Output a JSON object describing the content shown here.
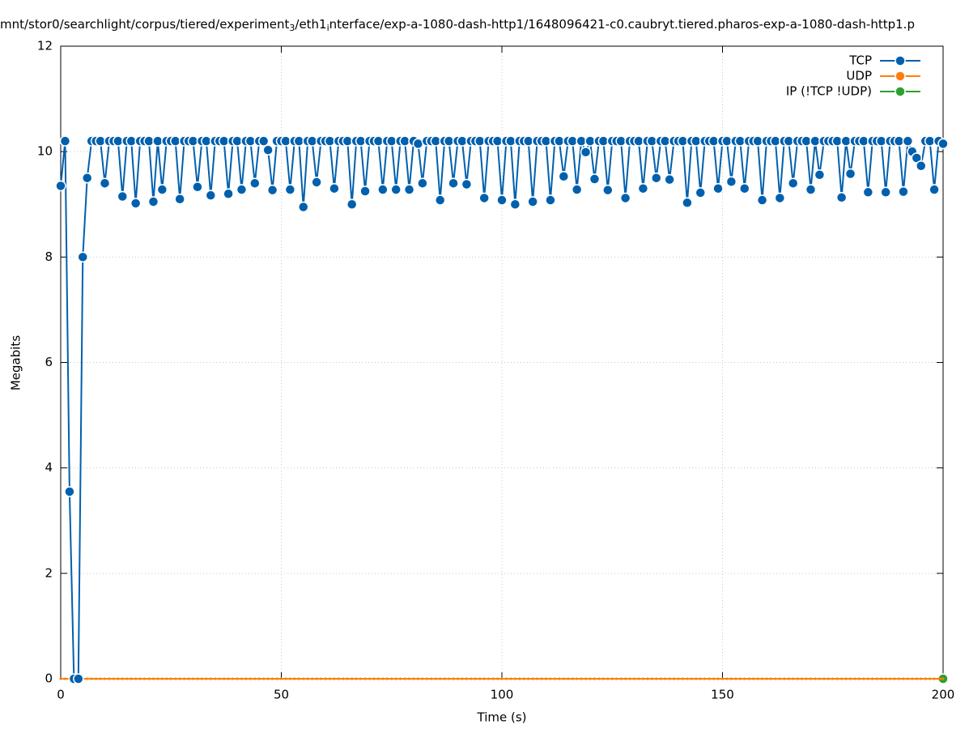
{
  "chart_data": {
    "type": "line",
    "title_parts": [
      "mnt/stor0/searchlight/corpus/tiered/experiment",
      "3",
      "/eth1",
      "i",
      "nterface/exp-a-1080-dash-http1/1648096421-c0.caubryt.tiered.pharos-exp-a-1080-dash-http1.p"
    ],
    "x_label": "Time (s)",
    "y_label": "Megabits",
    "xlim": [
      0,
      200
    ],
    "xticks": [
      0,
      50,
      100,
      150,
      200
    ],
    "ylim": [
      0,
      12
    ],
    "yticks": [
      0,
      2,
      4,
      6,
      8,
      10,
      12
    ],
    "grid": true,
    "legend": "top-right",
    "x": [
      0,
      1,
      2,
      3,
      4,
      5,
      6,
      7,
      8,
      9,
      10,
      11,
      12,
      13,
      14,
      15,
      16,
      17,
      18,
      19,
      20,
      21,
      22,
      23,
      24,
      25,
      26,
      27,
      28,
      29,
      30,
      31,
      32,
      33,
      34,
      35,
      36,
      37,
      38,
      39,
      40,
      41,
      42,
      43,
      44,
      45,
      46,
      47,
      48,
      49,
      50,
      51,
      52,
      53,
      54,
      55,
      56,
      57,
      58,
      59,
      60,
      61,
      62,
      63,
      64,
      65,
      66,
      67,
      68,
      69,
      70,
      71,
      72,
      73,
      74,
      75,
      76,
      77,
      78,
      79,
      80,
      81,
      82,
      83,
      84,
      85,
      86,
      87,
      88,
      89,
      90,
      91,
      92,
      93,
      94,
      95,
      96,
      97,
      98,
      99,
      100,
      101,
      102,
      103,
      104,
      105,
      106,
      107,
      108,
      109,
      110,
      111,
      112,
      113,
      114,
      115,
      116,
      117,
      118,
      119,
      120,
      121,
      122,
      123,
      124,
      125,
      126,
      127,
      128,
      129,
      130,
      131,
      132,
      133,
      134,
      135,
      136,
      137,
      138,
      139,
      140,
      141,
      142,
      143,
      144,
      145,
      146,
      147,
      148,
      149,
      150,
      151,
      152,
      153,
      154,
      155,
      156,
      157,
      158,
      159,
      160,
      161,
      162,
      163,
      164,
      165,
      166,
      167,
      168,
      169,
      170,
      171,
      172,
      173,
      174,
      175,
      176,
      177,
      178,
      179,
      180,
      181,
      182,
      183,
      184,
      185,
      186,
      187,
      188,
      189,
      190,
      191,
      192,
      193,
      194,
      195,
      196,
      197,
      198,
      199,
      200
    ],
    "series": [
      {
        "name": "TCP",
        "color": "#0060ad",
        "values": [
          9.35,
          10.2,
          3.55,
          0,
          0,
          8.0,
          9.5,
          10.2,
          10.2,
          10.2,
          9.4,
          10.2,
          10.2,
          10.2,
          9.15,
          10.2,
          10.2,
          9.02,
          10.2,
          10.2,
          10.2,
          9.05,
          10.2,
          9.28,
          10.2,
          10.2,
          10.2,
          9.1,
          10.2,
          10.2,
          10.2,
          9.33,
          10.2,
          10.2,
          9.17,
          10.2,
          10.2,
          10.2,
          9.2,
          10.2,
          10.2,
          9.28,
          10.2,
          10.2,
          9.4,
          10.2,
          10.2,
          10.03,
          9.27,
          10.2,
          10.2,
          10.2,
          9.28,
          10.2,
          10.2,
          8.95,
          10.2,
          10.2,
          9.42,
          10.2,
          10.2,
          10.2,
          9.3,
          10.2,
          10.2,
          10.2,
          9.0,
          10.2,
          10.2,
          9.25,
          10.2,
          10.2,
          10.2,
          9.28,
          10.2,
          10.2,
          9.28,
          10.2,
          10.2,
          9.28,
          10.2,
          10.15,
          9.4,
          10.2,
          10.2,
          10.2,
          9.08,
          10.2,
          10.2,
          9.4,
          10.2,
          10.2,
          9.38,
          10.2,
          10.2,
          10.2,
          9.12,
          10.2,
          10.2,
          10.2,
          9.08,
          10.2,
          10.2,
          9.0,
          10.2,
          10.2,
          10.2,
          9.05,
          10.2,
          10.2,
          10.2,
          9.08,
          10.2,
          10.2,
          9.53,
          10.2,
          10.2,
          9.28,
          10.2,
          9.99,
          10.2,
          9.48,
          10.2,
          10.2,
          9.27,
          10.2,
          10.2,
          10.2,
          9.12,
          10.2,
          10.2,
          10.2,
          9.3,
          10.2,
          10.2,
          9.5,
          10.2,
          10.2,
          9.47,
          10.2,
          10.2,
          10.2,
          9.03,
          10.2,
          10.2,
          9.22,
          10.2,
          10.2,
          10.2,
          9.3,
          10.2,
          10.2,
          9.43,
          10.2,
          10.2,
          9.3,
          10.2,
          10.2,
          10.2,
          9.08,
          10.2,
          10.2,
          10.2,
          9.12,
          10.2,
          10.2,
          9.4,
          10.2,
          10.2,
          10.2,
          9.28,
          10.2,
          9.56,
          10.2,
          10.2,
          10.2,
          10.2,
          9.13,
          10.2,
          9.58,
          10.2,
          10.2,
          10.2,
          9.23,
          10.2,
          10.2,
          10.2,
          9.23,
          10.2,
          10.2,
          10.2,
          9.24,
          10.2,
          10.0,
          9.88,
          9.73,
          10.2,
          10.2,
          9.28,
          10.2,
          10.15
        ]
      },
      {
        "name": "UDP",
        "color": "#ff7f0e",
        "values": [
          0,
          0,
          0,
          0,
          0,
          0,
          0,
          0,
          0,
          0,
          0,
          0,
          0,
          0,
          0,
          0,
          0,
          0,
          0,
          0,
          0,
          0,
          0,
          0,
          0,
          0,
          0,
          0,
          0,
          0,
          0,
          0,
          0,
          0,
          0,
          0,
          0,
          0,
          0,
          0,
          0,
          0,
          0,
          0,
          0,
          0,
          0,
          0,
          0,
          0,
          0,
          0,
          0,
          0,
          0,
          0,
          0,
          0,
          0,
          0,
          0,
          0,
          0,
          0,
          0,
          0,
          0,
          0,
          0,
          0,
          0,
          0,
          0,
          0,
          0,
          0,
          0,
          0,
          0,
          0,
          0,
          0,
          0,
          0,
          0,
          0,
          0,
          0,
          0,
          0,
          0,
          0,
          0,
          0,
          0,
          0,
          0,
          0,
          0,
          0,
          0,
          0,
          0,
          0,
          0,
          0,
          0,
          0,
          0,
          0,
          0,
          0,
          0,
          0,
          0,
          0,
          0,
          0,
          0,
          0,
          0,
          0,
          0,
          0,
          0,
          0,
          0,
          0,
          0,
          0,
          0,
          0,
          0,
          0,
          0,
          0,
          0,
          0,
          0,
          0,
          0,
          0,
          0,
          0,
          0,
          0,
          0,
          0,
          0,
          0,
          0,
          0,
          0,
          0,
          0,
          0,
          0,
          0,
          0,
          0,
          0,
          0,
          0,
          0,
          0,
          0,
          0,
          0,
          0,
          0,
          0,
          0,
          0,
          0,
          0,
          0,
          0,
          0,
          0,
          0,
          0,
          0,
          0,
          0,
          0,
          0,
          0,
          0,
          0,
          0,
          0,
          0,
          0,
          0,
          0,
          0,
          0,
          0,
          0,
          0,
          0
        ]
      },
      {
        "name": "IP (!TCP  !UDP)",
        "color": "#2ca02c",
        "values": [
          0,
          0,
          0,
          0,
          0,
          0,
          0,
          0,
          0,
          0,
          0,
          0,
          0,
          0,
          0,
          0,
          0,
          0,
          0,
          0,
          0,
          0,
          0,
          0,
          0,
          0,
          0,
          0,
          0,
          0,
          0,
          0,
          0,
          0,
          0,
          0,
          0,
          0,
          0,
          0,
          0,
          0,
          0,
          0,
          0,
          0,
          0,
          0,
          0,
          0,
          0,
          0,
          0,
          0,
          0,
          0,
          0,
          0,
          0,
          0,
          0,
          0,
          0,
          0,
          0,
          0,
          0,
          0,
          0,
          0,
          0,
          0,
          0,
          0,
          0,
          0,
          0,
          0,
          0,
          0,
          0,
          0,
          0,
          0,
          0,
          0,
          0,
          0,
          0,
          0,
          0,
          0,
          0,
          0,
          0,
          0,
          0,
          0,
          0,
          0,
          0,
          0,
          0,
          0,
          0,
          0,
          0,
          0,
          0,
          0,
          0,
          0,
          0,
          0,
          0,
          0,
          0,
          0,
          0,
          0,
          0,
          0,
          0,
          0,
          0,
          0,
          0,
          0,
          0,
          0,
          0,
          0,
          0,
          0,
          0,
          0,
          0,
          0,
          0,
          0,
          0,
          0,
          0,
          0,
          0,
          0,
          0,
          0,
          0,
          0,
          0,
          0,
          0,
          0,
          0,
          0,
          0,
          0,
          0,
          0,
          0,
          0,
          0,
          0,
          0,
          0,
          0,
          0,
          0,
          0,
          0,
          0,
          0,
          0,
          0,
          0,
          0,
          0,
          0,
          0,
          0,
          0,
          0,
          0,
          0,
          0,
          0,
          0,
          0,
          0,
          0,
          0,
          0,
          0,
          0,
          0,
          0,
          0,
          0,
          0,
          0
        ]
      }
    ]
  }
}
